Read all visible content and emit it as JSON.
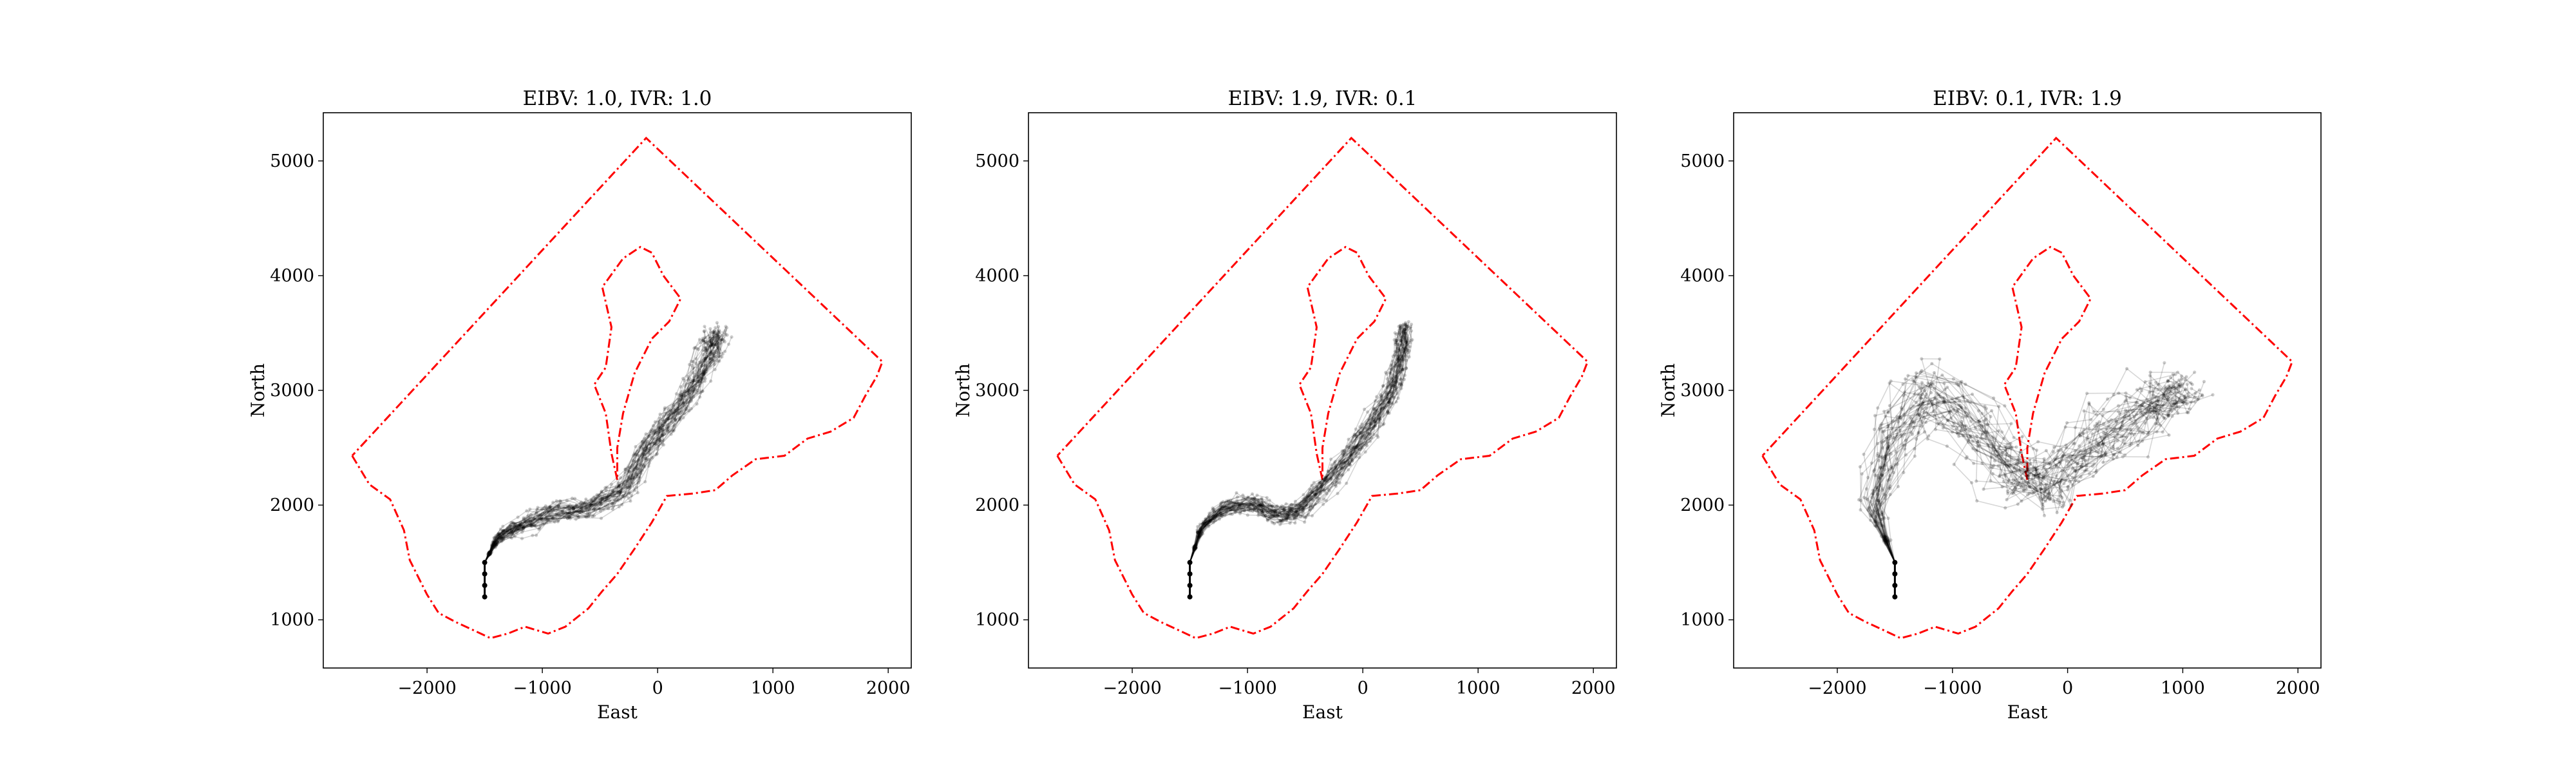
{
  "chart_data": [
    {
      "type": "line",
      "title": "EIBV: 1.0, IVR: 1.0",
      "xlabel": "East",
      "ylabel": "North",
      "xticks": [
        -2000,
        -1000,
        0,
        1000,
        2000
      ],
      "yticks": [
        1000,
        2000,
        3000,
        4000,
        5000
      ],
      "xlim": [
        -2900,
        2200
      ],
      "ylim": [
        580,
        5420
      ],
      "grid": false,
      "centerline": [
        [
          -1500,
          1500
        ],
        [
          -1400,
          1700
        ],
        [
          -1200,
          1830
        ],
        [
          -900,
          1930
        ],
        [
          -600,
          1960
        ],
        [
          -300,
          2130
        ],
        [
          -100,
          2470
        ],
        [
          100,
          2730
        ],
        [
          300,
          3030
        ],
        [
          450,
          3330
        ],
        [
          500,
          3500
        ]
      ],
      "spread": 160,
      "series": []
    },
    {
      "type": "line",
      "title": "EIBV: 1.9, IVR: 0.1",
      "xlabel": "East",
      "ylabel": "North",
      "xticks": [
        -2000,
        -1000,
        0,
        1000,
        2000
      ],
      "yticks": [
        1000,
        2000,
        3000,
        4000,
        5000
      ],
      "xlim": [
        -2900,
        2200
      ],
      "ylim": [
        580,
        5420
      ],
      "grid": false,
      "centerline": [
        [
          -1500,
          1500
        ],
        [
          -1400,
          1800
        ],
        [
          -1200,
          1980
        ],
        [
          -950,
          2020
        ],
        [
          -750,
          1900
        ],
        [
          -550,
          1950
        ],
        [
          -350,
          2150
        ],
        [
          -100,
          2430
        ],
        [
          80,
          2700
        ],
        [
          250,
          3000
        ],
        [
          330,
          3300
        ],
        [
          360,
          3550
        ]
      ],
      "spread": 140,
      "series": []
    },
    {
      "type": "line",
      "title": "EIBV: 0.1, IVR: 1.9",
      "xlabel": "East",
      "ylabel": "North",
      "xticks": [
        -2000,
        -1000,
        0,
        1000,
        2000
      ],
      "yticks": [
        1000,
        2000,
        3000,
        4000,
        5000
      ],
      "xlim": [
        -2900,
        2200
      ],
      "ylim": [
        580,
        5420
      ],
      "grid": false,
      "centerline": [
        [
          -1500,
          1500
        ],
        [
          -1700,
          2000
        ],
        [
          -1500,
          2600
        ],
        [
          -1200,
          3000
        ],
        [
          -800,
          2700
        ],
        [
          -450,
          2300
        ],
        [
          -200,
          2150
        ],
        [
          100,
          2400
        ],
        [
          400,
          2700
        ],
        [
          800,
          2900
        ],
        [
          1000,
          3000
        ]
      ],
      "spread": 420,
      "series": []
    }
  ],
  "shared": {
    "start_point": [
      -1500,
      1200
    ],
    "start_segment": [
      [
        -1500,
        1200
      ],
      [
        -1500,
        1500
      ]
    ],
    "outer_boundary": [
      [
        -2650,
        2430
      ],
      [
        -2500,
        2180
      ],
      [
        -2320,
        2050
      ],
      [
        -2200,
        1780
      ],
      [
        -2150,
        1520
      ],
      [
        -2000,
        1220
      ],
      [
        -1900,
        1060
      ],
      [
        -1750,
        980
      ],
      [
        -1620,
        920
      ],
      [
        -1450,
        840
      ],
      [
        -1300,
        880
      ],
      [
        -1150,
        940
      ],
      [
        -950,
        880
      ],
      [
        -800,
        940
      ],
      [
        -600,
        1100
      ],
      [
        -480,
        1250
      ],
      [
        -350,
        1400
      ],
      [
        -200,
        1620
      ],
      [
        -50,
        1850
      ],
      [
        80,
        2080
      ],
      [
        300,
        2100
      ],
      [
        500,
        2130
      ],
      [
        650,
        2260
      ],
      [
        850,
        2400
      ],
      [
        1100,
        2430
      ],
      [
        1300,
        2580
      ],
      [
        1500,
        2640
      ],
      [
        1700,
        2760
      ],
      [
        1800,
        2950
      ],
      [
        1900,
        3120
      ],
      [
        1950,
        3250
      ],
      [
        -100,
        5200
      ],
      [
        -2650,
        2430
      ]
    ],
    "inner_boundary": [
      [
        -350,
        2220
      ],
      [
        -400,
        2450
      ],
      [
        -450,
        2800
      ],
      [
        -550,
        3050
      ],
      [
        -450,
        3200
      ],
      [
        -400,
        3550
      ],
      [
        -480,
        3900
      ],
      [
        -300,
        4150
      ],
      [
        -150,
        4250
      ],
      [
        -50,
        4200
      ],
      [
        50,
        4000
      ],
      [
        200,
        3800
      ],
      [
        100,
        3600
      ],
      [
        -50,
        3450
      ],
      [
        -200,
        3150
      ],
      [
        -300,
        2800
      ],
      [
        -350,
        2500
      ],
      [
        -350,
        2220
      ]
    ],
    "boundary_color": "#ff0000",
    "trajectory_color": "#000000"
  }
}
